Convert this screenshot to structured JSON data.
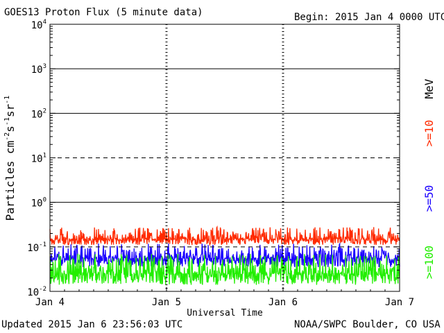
{
  "header": {
    "title": "GOES13 Proton Flux (5 minute data)",
    "begin": "Begin: 2015 Jan 4 0000 UTC"
  },
  "footer": {
    "updated": "Updated 2015 Jan  6 23:56:03 UTC",
    "credit": "NOAA/SWPC Boulder, CO USA"
  },
  "chart_data": {
    "type": "line",
    "title": "GOES13 Proton Flux (5 minute data)",
    "xlabel": "Universal Time",
    "ylabel_main": "Particles cm",
    "ylabel_sup1": "-2",
    "ylabel_mid1": "s",
    "ylabel_sup2": "-1",
    "ylabel_mid2": "sr",
    "ylabel_sup3": "-1",
    "y_scale": "log",
    "ylim": [
      0.01,
      10000
    ],
    "y_ticks": [
      {
        "base": "10",
        "exp": "4",
        "value": 10000
      },
      {
        "base": "10",
        "exp": "3",
        "value": 1000
      },
      {
        "base": "10",
        "exp": "2",
        "value": 100
      },
      {
        "base": "10",
        "exp": "1",
        "value": 10
      },
      {
        "base": "10",
        "exp": "0",
        "value": 1
      },
      {
        "base": "10",
        "exp": "-1",
        "value": 0.1
      },
      {
        "base": "10",
        "exp": "-2",
        "value": 0.01
      }
    ],
    "x_ticks": [
      "Jan 4",
      "Jan 5",
      "Jan 6",
      "Jan 7"
    ],
    "xlim_days": [
      4,
      7
    ],
    "threshold_lines": [
      {
        "value": 1000,
        "style": "solid"
      },
      {
        "value": 100,
        "style": "solid"
      },
      {
        "value": 10,
        "style": "dashed"
      },
      {
        "value": 1,
        "style": "solid"
      },
      {
        "value": 0.1,
        "style": "dashed"
      }
    ],
    "right_label_unit": "MeV",
    "series": [
      {
        "name": ">=10",
        "color": "#ff2a00",
        "baseline": 0.15,
        "spread": [
          0.11,
          0.28
        ]
      },
      {
        "name": ">=50",
        "color": "#1a00ff",
        "baseline": 0.055,
        "spread": [
          0.035,
          0.12
        ]
      },
      {
        "name": ">=100",
        "color": "#22ee00",
        "baseline": 0.025,
        "spread": [
          0.014,
          0.07
        ]
      }
    ]
  }
}
